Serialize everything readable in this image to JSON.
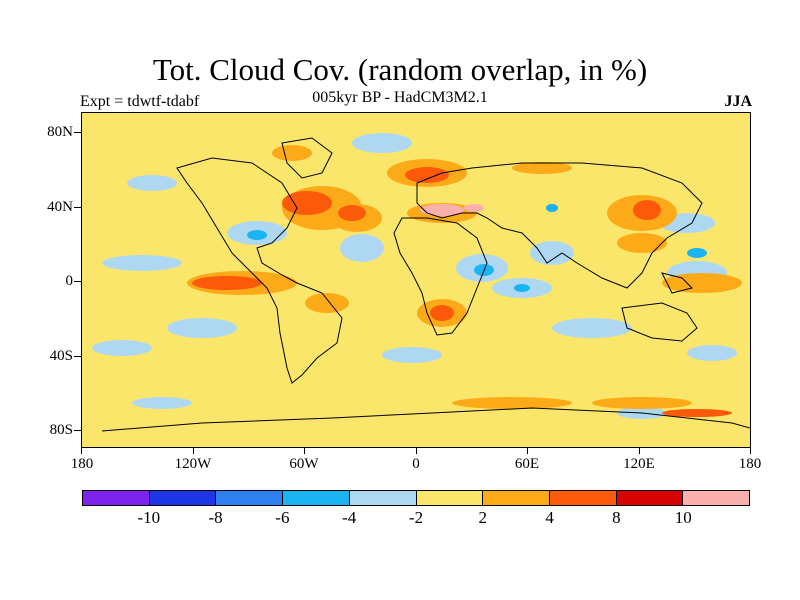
{
  "title": "Tot. Cloud Cov. (random overlap, in %)",
  "subtitle": "005kyr BP - HadCM3M2.1",
  "experiment_label": "Expt = tdwtf-tdabf",
  "season": "JJA",
  "map": {
    "projection": "cylindrical-equidistant",
    "lon_range": [
      -180,
      180
    ],
    "lat_range": [
      -90,
      90
    ],
    "lat_tick_labels": [
      "80N",
      "40N",
      "0",
      "40S",
      "80S"
    ],
    "lon_tick_labels": [
      "180",
      "120W",
      "60W",
      "0",
      "60E",
      "120E",
      "180"
    ],
    "coastlines": true
  },
  "colorbar": {
    "colors": [
      "#7b22ec",
      "#1c36e6",
      "#2f7ff0",
      "#1ab4f3",
      "#aed8f2",
      "#fbe66c",
      "#fdaa18",
      "#fc5a0a",
      "#d60404",
      "#fbb0b0"
    ],
    "labels": [
      "-10",
      "-8",
      "-6",
      "-4",
      "-2",
      "2",
      "4",
      "8",
      "10"
    ]
  }
}
